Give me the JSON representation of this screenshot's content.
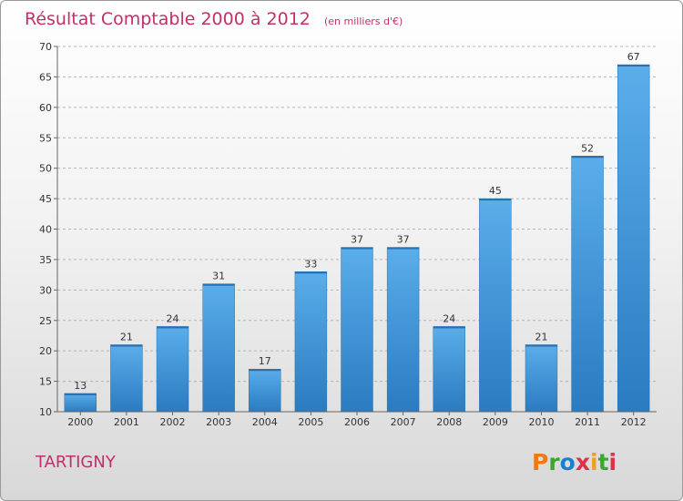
{
  "chart_data": {
    "type": "bar",
    "title": "Résultat Comptable 2000 à 2012",
    "subtitle": "(en milliers d'€)",
    "categories": [
      "2000",
      "2001",
      "2002",
      "2003",
      "2004",
      "2005",
      "2006",
      "2007",
      "2008",
      "2009",
      "2010",
      "2011",
      "2012"
    ],
    "values": [
      13,
      21,
      24,
      31,
      17,
      33,
      37,
      37,
      24,
      45,
      21,
      52,
      67
    ],
    "ylim": [
      10,
      70
    ],
    "yticks": [
      10,
      15,
      20,
      25,
      30,
      35,
      40,
      45,
      50,
      55,
      60,
      65,
      70
    ],
    "xlabel": "",
    "ylabel": "",
    "grid": true,
    "bar_color": "#3d8fd6"
  },
  "footer": {
    "town": "TARTIGNY",
    "logo_letters": [
      "P",
      "r",
      "o",
      "x",
      "i",
      "t",
      "i"
    ],
    "logo_colors": [
      "#f07a10",
      "#3aa830",
      "#1a7fd0",
      "#e0304a",
      "#f0a020",
      "#3aa830",
      "#e0304a"
    ]
  }
}
